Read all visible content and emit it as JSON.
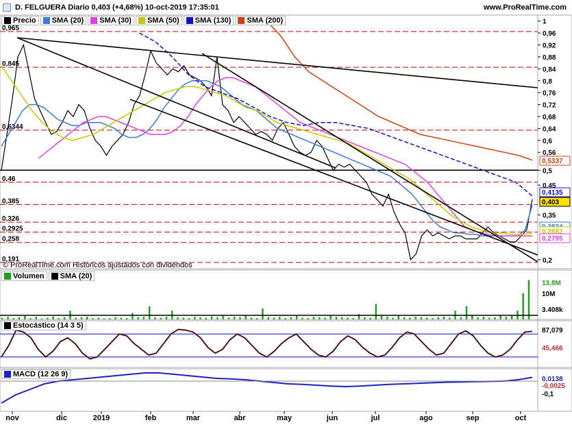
{
  "header": {
    "title": "D. FELGUERA Diario 0,403 (+4,68%) 10-oct-2019 17:35:01",
    "site": "www.ProRealTime.com"
  },
  "legend_price": [
    {
      "label": "Precio",
      "color": "#000000"
    },
    {
      "label": "SMA (20)",
      "color": "#3a7bd5"
    },
    {
      "label": "SMA (30)",
      "color": "#e040e0"
    },
    {
      "label": "SMA (50)",
      "color": "#c8c800"
    },
    {
      "label": "SMA (130)",
      "color": "#1010c8"
    },
    {
      "label": "SMA (200)",
      "color": "#d04010"
    }
  ],
  "legend_volume": [
    {
      "label": "Volumen",
      "color": "#20a020"
    },
    {
      "label": "SMA (20)",
      "color": "#000000"
    }
  ],
  "legend_stoch": [
    {
      "label": "Estocástico (14 3 5)",
      "color": "#000000"
    }
  ],
  "legend_macd": [
    {
      "label": "MACD (12 26 9)",
      "color": "#2020c0"
    }
  ],
  "copyright": "© ProRealTime.com Históricos ajustados con dividendos",
  "chart_data": {
    "type": "line",
    "x_labels": [
      "nov",
      "dic",
      "2019",
      "feb",
      "mar",
      "abr",
      "may",
      "jun",
      "jul",
      "ago",
      "sep",
      "oct"
    ],
    "price_axis_ticks": [
      "1",
      "0,96",
      "0,92",
      "0,88",
      "0,84",
      "0,8",
      "0,76",
      "0,72",
      "0,68",
      "0,64",
      "0,6",
      "0,56",
      "0,5",
      "0,45",
      "0,35",
      "0,2"
    ],
    "price_ylim": [
      0.17,
      1.02
    ],
    "level_labels": [
      "0,965",
      "0,845",
      "0,6344",
      "0,46",
      "0,385",
      "0,326",
      "0,2925",
      "0,258",
      "0,191"
    ],
    "levels": [
      0.965,
      0.845,
      0.6344,
      0.5,
      0.46,
      0.385,
      0.326,
      0.2925,
      0.258,
      0.191
    ],
    "price_tags": [
      {
        "label": "0,5337",
        "color": "#d04010"
      },
      {
        "label": "0,4135",
        "color": "#1010c8"
      },
      {
        "label": "0,403",
        "color": "#000000"
      },
      {
        "label": "0,3834",
        "color": "#3a7bd5"
      },
      {
        "label": "0,2882",
        "color": "#c8c800"
      },
      {
        "label": "0,2795",
        "color": "#e040e0"
      }
    ],
    "series": [
      {
        "name": "Precio",
        "values": [
          0.5,
          0.62,
          0.74,
          0.88,
          0.92,
          0.83,
          0.74,
          0.7,
          0.66,
          0.62,
          0.63,
          0.66,
          0.7,
          0.68,
          0.72,
          0.7,
          0.64,
          0.6,
          0.58,
          0.55,
          0.58,
          0.6,
          0.62,
          0.66,
          0.72,
          0.75,
          0.82,
          0.9,
          0.86,
          0.84,
          0.82,
          0.84,
          0.83,
          0.85,
          0.82,
          0.81,
          0.8,
          0.78,
          0.75,
          0.88,
          0.72,
          0.7,
          0.66,
          0.68,
          0.66,
          0.64,
          0.62,
          0.63,
          0.62,
          0.6,
          0.64,
          0.66,
          0.62,
          0.58,
          0.56,
          0.55,
          0.56,
          0.6,
          0.58,
          0.54,
          0.5,
          0.52,
          0.51,
          0.52,
          0.5,
          0.48,
          0.46,
          0.42,
          0.4,
          0.38,
          0.42,
          0.36,
          0.32,
          0.29,
          0.2,
          0.22,
          0.28,
          0.3,
          0.28,
          0.29,
          0.28,
          0.27,
          0.28,
          0.28,
          0.27,
          0.27,
          0.27,
          0.29,
          0.31,
          0.29,
          0.28,
          0.27,
          0.26,
          0.26,
          0.28,
          0.3,
          0.403
        ]
      },
      {
        "name": "SMA (20)",
        "values": [
          0.58,
          0.62,
          0.66,
          0.7,
          0.72,
          0.72,
          0.71,
          0.69,
          0.67,
          0.66,
          0.65,
          0.65,
          0.66,
          0.66,
          0.66,
          0.65,
          0.64,
          0.62,
          0.61,
          0.61,
          0.62,
          0.64,
          0.67,
          0.71,
          0.74,
          0.77,
          0.79,
          0.8,
          0.8,
          0.8,
          0.79,
          0.78,
          0.76,
          0.74,
          0.72,
          0.71,
          0.7,
          0.68,
          0.66,
          0.64,
          0.63,
          0.62,
          0.61,
          0.6,
          0.59,
          0.58,
          0.57,
          0.56,
          0.55,
          0.54,
          0.53,
          0.52,
          0.51,
          0.5,
          0.49,
          0.48,
          0.46,
          0.44,
          0.42,
          0.39,
          0.36,
          0.33,
          0.31,
          0.3,
          0.29,
          0.29,
          0.285,
          0.285,
          0.28,
          0.28,
          0.28,
          0.28,
          0.28,
          0.28,
          0.3,
          0.3834
        ]
      },
      {
        "name": "SMA (30)",
        "values": [
          0.54,
          0.56,
          0.58,
          0.6,
          0.62,
          0.64,
          0.66,
          0.67,
          0.68,
          0.68,
          0.67,
          0.66,
          0.65,
          0.64,
          0.63,
          0.62,
          0.62,
          0.62,
          0.63,
          0.65,
          0.68,
          0.72,
          0.75,
          0.78,
          0.8,
          0.81,
          0.81,
          0.8,
          0.79,
          0.78,
          0.76,
          0.74,
          0.72,
          0.7,
          0.68,
          0.66,
          0.65,
          0.64,
          0.63,
          0.62,
          0.61,
          0.6,
          0.59,
          0.58,
          0.57,
          0.56,
          0.55,
          0.54,
          0.53,
          0.52,
          0.5,
          0.48,
          0.46,
          0.43,
          0.4,
          0.37,
          0.34,
          0.31,
          0.3,
          0.29,
          0.285,
          0.28,
          0.28,
          0.28,
          0.28,
          0.28,
          0.2795
        ]
      },
      {
        "name": "SMA (50)",
        "values": [
          0.85,
          0.8,
          0.75,
          0.7,
          0.66,
          0.63,
          0.61,
          0.6,
          0.61,
          0.62,
          0.64,
          0.66,
          0.68,
          0.7,
          0.72,
          0.74,
          0.76,
          0.77,
          0.78,
          0.78,
          0.77,
          0.76,
          0.75,
          0.73,
          0.71,
          0.7,
          0.68,
          0.66,
          0.65,
          0.64,
          0.63,
          0.62,
          0.61,
          0.6,
          0.59,
          0.57,
          0.55,
          0.53,
          0.51,
          0.49,
          0.47,
          0.44,
          0.41,
          0.38,
          0.35,
          0.33,
          0.31,
          0.3,
          0.29,
          0.29,
          0.285,
          0.285,
          0.2882
        ]
      },
      {
        "name": "SMA (130)",
        "values": [
          0.96,
          0.93,
          0.88,
          0.82,
          0.78,
          0.76,
          0.74,
          0.71,
          0.68,
          0.66,
          0.65,
          0.66,
          0.66,
          0.65,
          0.64,
          0.62,
          0.6,
          0.58,
          0.56,
          0.54,
          0.52,
          0.5,
          0.48,
          0.46,
          0.4135
        ]
      },
      {
        "name": "SMA (200)",
        "values": [
          1.0,
          0.95,
          0.88,
          0.83,
          0.8,
          0.77,
          0.74,
          0.71,
          0.68,
          0.66,
          0.64,
          0.62,
          0.61,
          0.6,
          0.59,
          0.58,
          0.57,
          0.56,
          0.55,
          0.5337
        ]
      }
    ],
    "volume": {
      "axis_labels": [
        "13,8M",
        "10M",
        "3.408k"
      ],
      "bars": [
        0.04,
        0.06,
        0.03,
        0.05,
        0.08,
        0.03,
        0.06,
        0.02,
        0.04,
        0.07,
        0.03,
        0.05,
        0.2,
        0.04,
        0.05,
        0.06,
        0.03,
        0.04,
        0.02,
        0.03,
        0.05,
        0.04,
        0.03,
        0.15,
        0.05,
        0.06,
        0.3,
        0.05,
        0.04,
        0.06,
        0.2,
        0.05,
        0.04,
        0.03,
        0.06,
        0.05,
        0.04,
        0.07,
        0.05,
        0.1,
        0.04,
        0.06,
        0.05,
        0.08,
        0.04,
        0.03,
        0.25,
        0.05,
        0.04,
        0.06,
        0.03,
        0.05,
        0.08,
        0.04,
        0.03,
        0.06,
        0.05,
        0.04,
        0.1,
        0.06,
        0.05,
        0.04,
        0.03,
        0.12,
        0.05,
        0.04,
        0.35,
        0.1,
        0.06,
        0.04,
        0.08,
        0.05,
        0.04,
        0.06,
        0.05,
        0.04,
        0.03,
        0.05,
        0.06,
        0.04,
        0.2,
        0.05,
        0.3,
        0.1,
        0.05,
        0.06,
        0.04,
        0.05,
        0.08,
        0.06,
        0.1,
        0.2,
        0.6,
        0.9
      ]
    },
    "stochastic": {
      "axis_labels": [
        "87,079",
        "45,466"
      ],
      "k": [
        20,
        50,
        90,
        85,
        70,
        40,
        20,
        35,
        60,
        70,
        55,
        30,
        15,
        20,
        40,
        60,
        80,
        75,
        55,
        40,
        25,
        30,
        55,
        80,
        92,
        90,
        85,
        70,
        45,
        30,
        40,
        65,
        80,
        70,
        50,
        30,
        20,
        35,
        55,
        70,
        80,
        60,
        40,
        25,
        20,
        35,
        60,
        75,
        65,
        45,
        30,
        20,
        25,
        45,
        70,
        85,
        80,
        60,
        40,
        25,
        30,
        55,
        80,
        88,
        75,
        50,
        30,
        20,
        25,
        40,
        65,
        85,
        87
      ]
    },
    "macd": {
      "axis_labels": [
        "0,0138",
        "-0,0025",
        "-0,1"
      ],
      "line": [
        -0.08,
        -0.05,
        -0.03,
        -0.01,
        0.0,
        0.005,
        0.01,
        0.015,
        0.02,
        0.025,
        0.03,
        0.03,
        0.025,
        0.02,
        0.015,
        0.01,
        0.008,
        0.005,
        0.0,
        -0.005,
        -0.01,
        -0.012,
        -0.015,
        -0.018,
        -0.02,
        -0.018,
        -0.015,
        -0.012,
        -0.01,
        -0.008,
        -0.006,
        -0.004,
        -0.003,
        -0.002,
        -0.001,
        0.0,
        0.005,
        0.0138
      ]
    }
  }
}
